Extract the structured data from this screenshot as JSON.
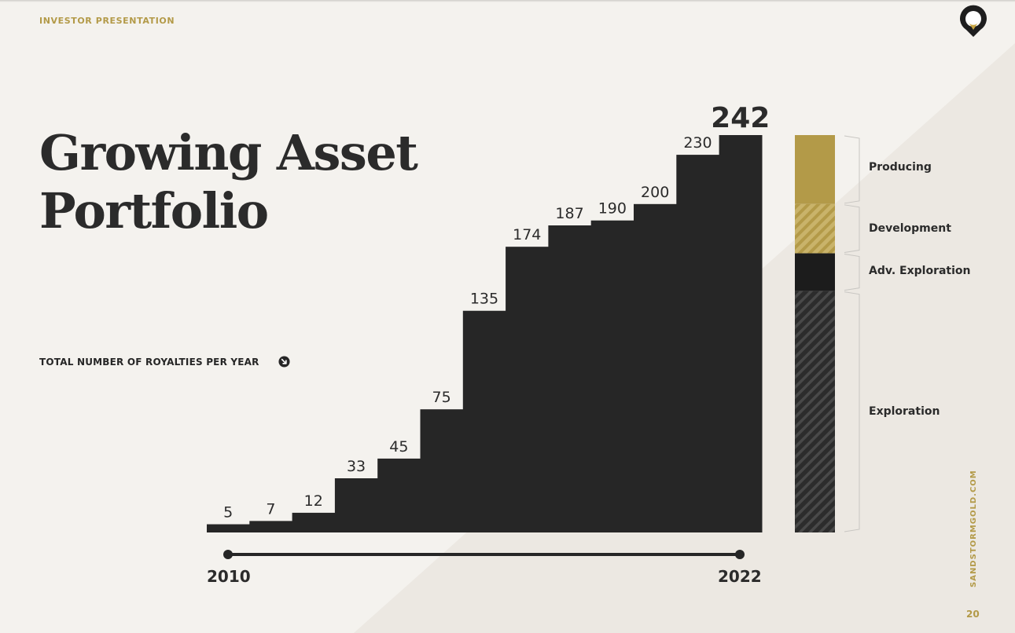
{
  "header": {
    "label": "INVESTOR PRESENTATION"
  },
  "title": {
    "line1": "Growing Asset",
    "line2": "Portfolio"
  },
  "subtitle": "TOTAL NUMBER OF ROYALTIES PER YEAR",
  "footer": {
    "url": "SANDSTORMGOLD.COM",
    "page": "20"
  },
  "colors": {
    "gold": "#b39a48",
    "dark": "#262626",
    "background": "#f4f2ee"
  },
  "icons": {
    "logo": "sandstorm-logo-icon",
    "arrow": "arrow-down-right-circle-icon"
  },
  "chart_data": {
    "type": "bar",
    "values": [
      5,
      7,
      12,
      33,
      45,
      75,
      135,
      174,
      187,
      190,
      200,
      230,
      242
    ],
    "labels": [
      "5",
      "7",
      "12",
      "33",
      "45",
      "75",
      "135",
      "174",
      "187",
      "190",
      "200",
      "230",
      "242"
    ],
    "year_start": "2010",
    "year_end": "2022",
    "ylim": [
      0,
      242
    ],
    "composition": [
      {
        "label": "Producing",
        "value": 42,
        "color": "#b39a48",
        "pattern": "solid"
      },
      {
        "label": "Development",
        "value": 30,
        "color": "#c9b36a",
        "pattern": "hatched"
      },
      {
        "label": "Adv. Exploration",
        "value": 23,
        "color": "#1c1c1c",
        "pattern": "solid"
      },
      {
        "label": "Exploration",
        "value": 147,
        "color": "#3a3a3a",
        "pattern": "hatched"
      }
    ]
  }
}
